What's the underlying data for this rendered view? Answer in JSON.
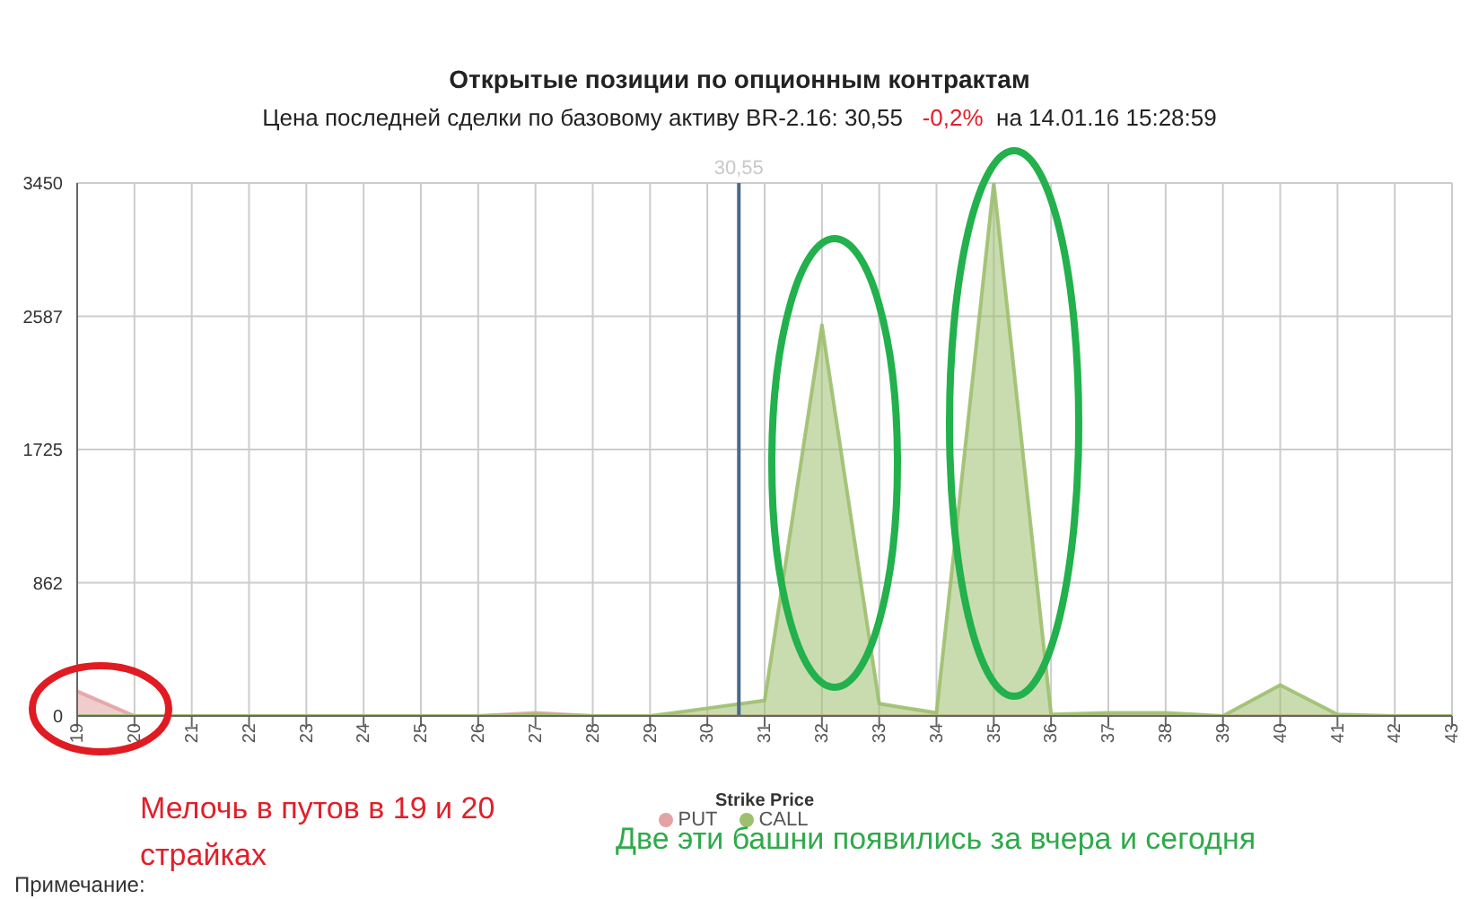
{
  "chart_data": {
    "type": "area",
    "title": "Открытые позиции по опционным контрактам",
    "subtitle": "Цена последней сделки по базовому активу BR-2.16: 30,55   -0,2%  на 14.01.16 15:28:59",
    "xlabel": "Strike Price",
    "x": [
      19,
      20,
      21,
      22,
      23,
      24,
      25,
      26,
      27,
      28,
      29,
      30,
      31,
      32,
      33,
      34,
      35,
      36,
      37,
      38,
      39,
      40,
      41,
      42,
      43
    ],
    "series": [
      {
        "name": "PUT",
        "color": "#e3a3a3",
        "values": [
          160,
          0,
          0,
          0,
          0,
          0,
          0,
          0,
          20,
          0,
          0,
          0,
          0,
          0,
          0,
          0,
          0,
          0,
          0,
          0,
          0,
          0,
          0,
          0,
          0
        ]
      },
      {
        "name": "CALL",
        "color": "#9dbf6e",
        "values": [
          0,
          0,
          0,
          0,
          0,
          0,
          0,
          0,
          10,
          0,
          0,
          50,
          100,
          2530,
          80,
          20,
          3450,
          10,
          20,
          20,
          0,
          200,
          10,
          0,
          0
        ]
      }
    ],
    "xlim": [
      19,
      43
    ],
    "xticks": [
      19,
      20,
      21,
      22,
      23,
      24,
      25,
      26,
      27,
      28,
      29,
      30,
      31,
      32,
      33,
      34,
      35,
      36,
      37,
      38,
      39,
      40,
      41,
      42,
      43
    ],
    "ylim": [
      0,
      3450
    ],
    "yticks": [
      0,
      862,
      1725,
      2587,
      3450
    ],
    "ref_lines": [
      {
        "axis": "x",
        "value": 30.55,
        "label": "30,55",
        "color": "#4a6a8a"
      }
    ],
    "grid": true,
    "legend": "bottom",
    "marker": "none",
    "annotations": [
      "Мелочь в путов в 19 и 20 страйках",
      "Две эти башни появились за вчера и сегодня",
      "Примечание:"
    ]
  }
}
